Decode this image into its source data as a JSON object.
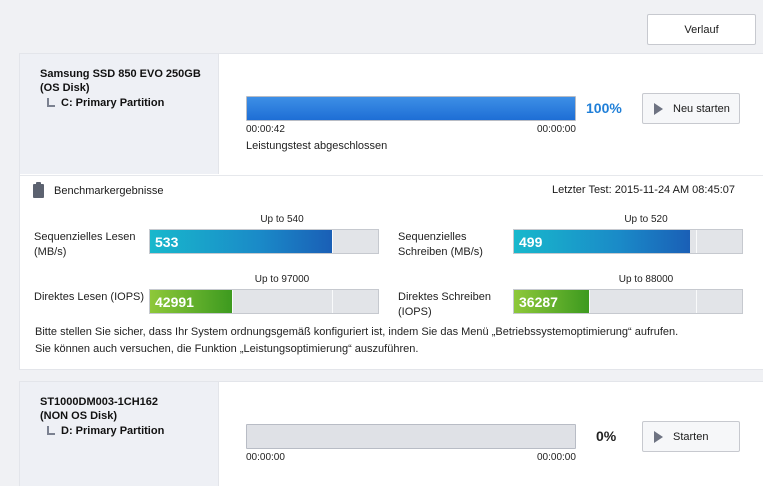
{
  "toolbar": {
    "history_label": "Verlauf"
  },
  "drives": [
    {
      "name_line1": "Samsung SSD 850 EVO 250GB",
      "name_line2": "(OS Disk)",
      "partition": "C: Primary Partition",
      "progress_percent": 100,
      "percent_label": "100%",
      "elapsed": "00:00:42",
      "remaining": "00:00:00",
      "status": "Leistungstest abgeschlossen",
      "action_label": "Neu starten"
    },
    {
      "name_line1": "ST1000DM003-1CH162",
      "name_line2": "(NON OS Disk)",
      "partition": "D: Primary Partition",
      "progress_percent": 0,
      "percent_label": "0%",
      "elapsed": "00:00:00",
      "remaining": "00:00:00",
      "action_label": "Starten"
    }
  ],
  "benchmark": {
    "title": "Benchmarkergebnisse",
    "last_test": "Letzter Test: 2015-11-24 AM 08:45:07",
    "metrics": [
      {
        "label": "Sequenzielles Lesen (MB/s)",
        "value": "533",
        "max_label": "Up to 540",
        "max": 540,
        "color": "blue"
      },
      {
        "label": "Sequenzielles Schreiben (MB/s)",
        "value": "499",
        "max_label": "Up to 520",
        "max": 520,
        "color": "blue"
      },
      {
        "label": "Direktes Lesen (IOPS)",
        "value": "42991",
        "max_label": "Up to 97000",
        "max": 97000,
        "color": "green"
      },
      {
        "label": "Direktes Schreiben (IOPS)",
        "value": "36287",
        "max_label": "Up to 88000",
        "max": 88000,
        "color": "green"
      }
    ],
    "advice_line1": "Bitte stellen Sie sicher, dass Ihr System ordnungsgemäß konfiguriert ist, indem Sie das Menü „Betriebssystemoptimierung“ aufrufen.",
    "advice_line2": "Sie können auch versuchen, die Funktion „Leistungsoptimierung“ auszuführen."
  }
}
